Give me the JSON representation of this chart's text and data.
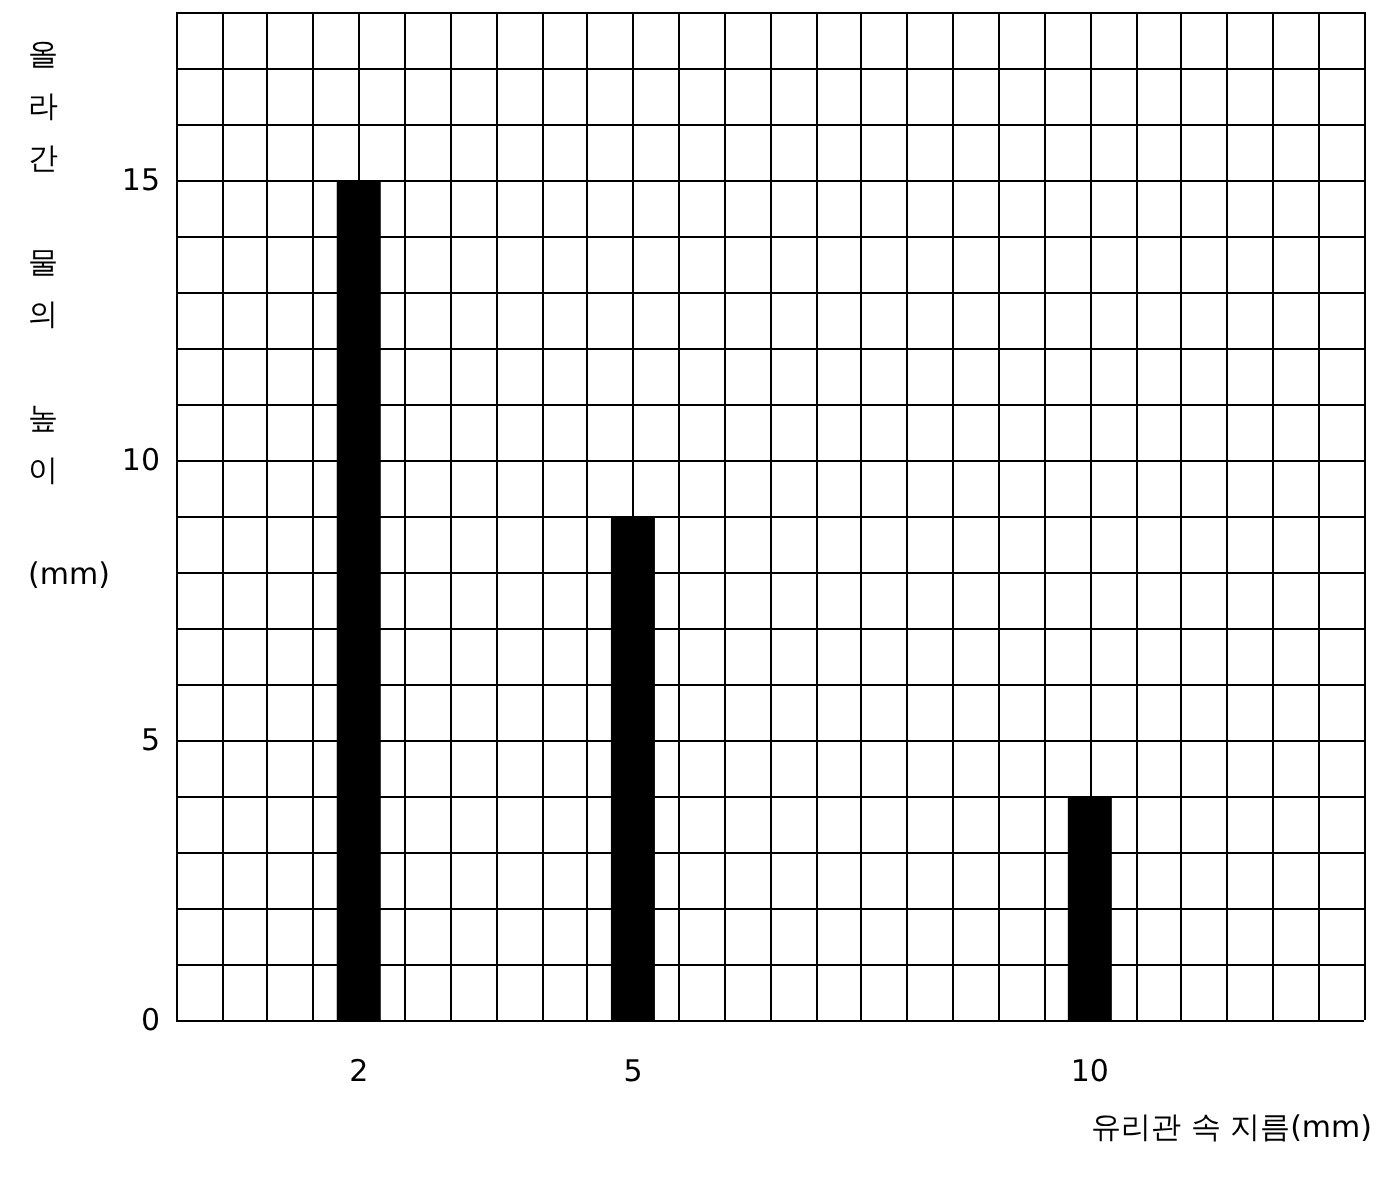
{
  "chart_data": {
    "type": "bar",
    "xlabel": "유리관 속 지름(mm)",
    "ylabel": "올라간 물의 높이 (mm)",
    "x": [
      2,
      5,
      10
    ],
    "values": [
      15,
      9,
      4
    ],
    "color": "#000000",
    "xlim": [
      0,
      13
    ],
    "ylim": [
      0,
      18
    ],
    "xticks": [
      {
        "value": 0,
        "label": null
      },
      {
        "value": 0.5,
        "label": null
      },
      {
        "value": 1,
        "label": null
      },
      {
        "value": 1.5,
        "label": null
      },
      2,
      {
        "value": 2.5,
        "label": null
      },
      {
        "value": 3,
        "label": null
      },
      {
        "value": 3.5,
        "label": null
      },
      {
        "value": 4,
        "label": null
      },
      {
        "value": 4.5,
        "label": null
      },
      5,
      {
        "value": 5.5,
        "label": null
      },
      {
        "value": 6,
        "label": null
      },
      {
        "value": 6.5,
        "label": null
      },
      {
        "value": 7,
        "label": null
      },
      {
        "value": 7.5,
        "label": null
      },
      {
        "value": 8,
        "label": null
      },
      {
        "value": 8.5,
        "label": null
      },
      {
        "value": 9,
        "label": null
      },
      {
        "value": 9.5,
        "label": null
      },
      10,
      {
        "value": 10.5,
        "label": null
      },
      {
        "value": 11,
        "label": null
      },
      {
        "value": 11.5,
        "label": null
      },
      {
        "value": 12,
        "label": null
      },
      {
        "value": 12.5,
        "label": null
      },
      {
        "value": 13,
        "label": null
      }
    ],
    "yticks": [
      0,
      {
        "value": 1,
        "label": null
      },
      {
        "value": 2,
        "label": null
      },
      {
        "value": 3,
        "label": null
      },
      {
        "value": 4,
        "label": null
      },
      5,
      {
        "value": 6,
        "label": null
      },
      {
        "value": 7,
        "label": null
      },
      {
        "value": 8,
        "label": null
      },
      {
        "value": 9,
        "label": null
      },
      10,
      {
        "value": 11,
        "label": null
      },
      {
        "value": 12,
        "label": null
      },
      {
        "value": 13,
        "label": null
      },
      {
        "value": 14,
        "label": null
      },
      15,
      {
        "value": 16,
        "label": null
      },
      {
        "value": 17,
        "label": null
      },
      {
        "value": 18,
        "label": null
      }
    ],
    "grid": true
  }
}
